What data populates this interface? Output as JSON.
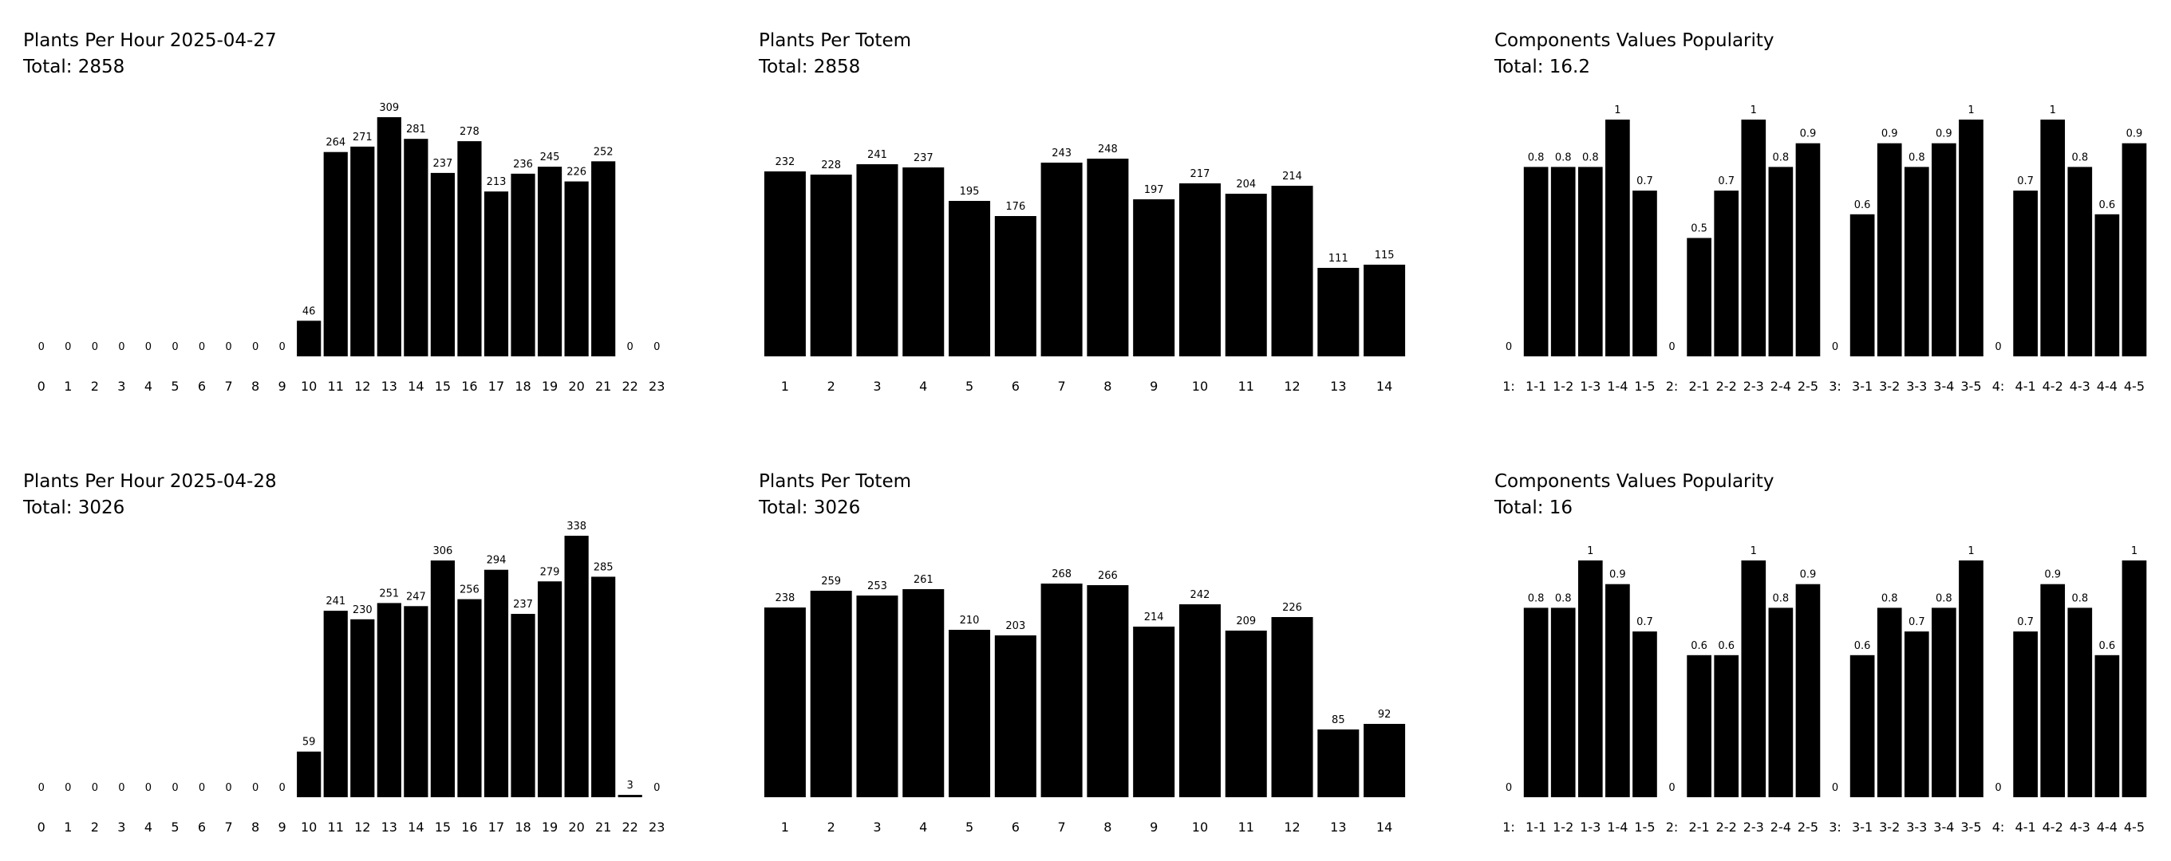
{
  "chart_data": [
    {
      "type": "bar",
      "title": "Plants Per Hour 2025-04-27",
      "total_label": "Total: 2858",
      "categories": [
        "0",
        "1",
        "2",
        "3",
        "4",
        "5",
        "6",
        "7",
        "8",
        "9",
        "10",
        "11",
        "12",
        "13",
        "14",
        "15",
        "16",
        "17",
        "18",
        "19",
        "20",
        "21",
        "22",
        "23"
      ],
      "values": [
        0,
        0,
        0,
        0,
        0,
        0,
        0,
        0,
        0,
        0,
        46,
        264,
        271,
        309,
        281,
        237,
        278,
        213,
        236,
        245,
        226,
        252,
        0,
        0
      ],
      "value_labels": [
        "0",
        "0",
        "0",
        "0",
        "0",
        "0",
        "0",
        "0",
        "0",
        "0",
        "46",
        "264",
        "271",
        "309",
        "281",
        "237",
        "278",
        "213",
        "236",
        "245",
        "226",
        "252",
        "0",
        "0"
      ],
      "ylim": [
        0,
        309
      ],
      "color": "#000000"
    },
    {
      "type": "bar",
      "title": "Plants Per Totem",
      "total_label": "Total: 2858",
      "categories": [
        "1",
        "2",
        "3",
        "4",
        "5",
        "6",
        "7",
        "8",
        "9",
        "10",
        "11",
        "12",
        "13",
        "14"
      ],
      "values": [
        232,
        228,
        241,
        237,
        195,
        176,
        243,
        248,
        197,
        217,
        204,
        214,
        111,
        115
      ],
      "value_labels": [
        "232",
        "228",
        "241",
        "237",
        "195",
        "176",
        "243",
        "248",
        "197",
        "217",
        "204",
        "214",
        "111",
        "115"
      ],
      "ylim": [
        0,
        300
      ],
      "color": "#000000"
    },
    {
      "type": "bar",
      "title": "Components Values Popularity",
      "total_label": "Total: 16.2",
      "groups": [
        {
          "label": "1:",
          "categories": [
            "1-1",
            "1-2",
            "1-3",
            "1-4",
            "1-5"
          ],
          "values": [
            0.8,
            0.8,
            0.8,
            1,
            0.7
          ],
          "value_labels": [
            "0.8",
            "0.8",
            "0.8",
            "1",
            "0.7"
          ]
        },
        {
          "label": "2:",
          "categories": [
            "2-1",
            "2-2",
            "2-3",
            "2-4",
            "2-5"
          ],
          "values": [
            0.5,
            0.7,
            1,
            0.8,
            0.9
          ],
          "value_labels": [
            "0.5",
            "0.7",
            "1",
            "0.8",
            "0.9"
          ]
        },
        {
          "label": "3:",
          "categories": [
            "3-1",
            "3-2",
            "3-3",
            "3-4",
            "3-5"
          ],
          "values": [
            0.6,
            0.9,
            0.8,
            0.9,
            1
          ],
          "value_labels": [
            "0.6",
            "0.9",
            "0.8",
            "0.9",
            "1"
          ]
        },
        {
          "label": "4:",
          "categories": [
            "4-1",
            "4-2",
            "4-3",
            "4-4",
            "4-5"
          ],
          "values": [
            0.7,
            1,
            0.8,
            0.6,
            0.9
          ],
          "value_labels": [
            "0.7",
            "1",
            "0.8",
            "0.6",
            "0.9"
          ]
        }
      ],
      "group_value_label": "0",
      "ylim": [
        0,
        1
      ],
      "color": "#000000"
    },
    {
      "type": "bar",
      "title": "Plants Per Hour 2025-04-28",
      "total_label": "Total: 3026",
      "categories": [
        "0",
        "1",
        "2",
        "3",
        "4",
        "5",
        "6",
        "7",
        "8",
        "9",
        "10",
        "11",
        "12",
        "13",
        "14",
        "15",
        "16",
        "17",
        "18",
        "19",
        "20",
        "21",
        "22",
        "23"
      ],
      "values": [
        0,
        0,
        0,
        0,
        0,
        0,
        0,
        0,
        0,
        0,
        59,
        241,
        230,
        251,
        247,
        306,
        256,
        294,
        237,
        279,
        338,
        285,
        3,
        0
      ],
      "value_labels": [
        "0",
        "0",
        "0",
        "0",
        "0",
        "0",
        "0",
        "0",
        "0",
        "0",
        "59",
        "241",
        "230",
        "251",
        "247",
        "306",
        "256",
        "294",
        "237",
        "279",
        "338",
        "285",
        "3",
        "0"
      ],
      "ylim": [
        0,
        338
      ],
      "color": "#000000"
    },
    {
      "type": "bar",
      "title": "Plants Per Totem",
      "total_label": "Total: 3026",
      "categories": [
        "1",
        "2",
        "3",
        "4",
        "5",
        "6",
        "7",
        "8",
        "9",
        "10",
        "11",
        "12",
        "13",
        "14"
      ],
      "values": [
        238,
        259,
        253,
        261,
        210,
        203,
        268,
        266,
        214,
        242,
        209,
        226,
        85,
        92
      ],
      "value_labels": [
        "238",
        "259",
        "253",
        "261",
        "210",
        "203",
        "268",
        "266",
        "214",
        "242",
        "209",
        "226",
        "85",
        "92"
      ],
      "ylim": [
        0,
        300
      ],
      "color": "#000000"
    },
    {
      "type": "bar",
      "title": "Components Values Popularity",
      "total_label": "Total: 16",
      "groups": [
        {
          "label": "1:",
          "categories": [
            "1-1",
            "1-2",
            "1-3",
            "1-4",
            "1-5"
          ],
          "values": [
            0.8,
            0.8,
            1,
            0.9,
            0.7
          ],
          "value_labels": [
            "0.8",
            "0.8",
            "1",
            "0.9",
            "0.7"
          ]
        },
        {
          "label": "2:",
          "categories": [
            "2-1",
            "2-2",
            "2-3",
            "2-4",
            "2-5"
          ],
          "values": [
            0.6,
            0.6,
            1,
            0.8,
            0.9
          ],
          "value_labels": [
            "0.6",
            "0.6",
            "1",
            "0.8",
            "0.9"
          ]
        },
        {
          "label": "3:",
          "categories": [
            "3-1",
            "3-2",
            "3-3",
            "3-4",
            "3-5"
          ],
          "values": [
            0.6,
            0.8,
            0.7,
            0.8,
            1
          ],
          "value_labels": [
            "0.6",
            "0.8",
            "0.7",
            "0.8",
            "1"
          ]
        },
        {
          "label": "4:",
          "categories": [
            "4-1",
            "4-2",
            "4-3",
            "4-4",
            "4-5"
          ],
          "values": [
            0.7,
            0.9,
            0.8,
            0.6,
            1
          ],
          "value_labels": [
            "0.7",
            "0.9",
            "0.8",
            "0.6",
            "1"
          ]
        }
      ],
      "group_value_label": "0",
      "ylim": [
        0,
        1
      ],
      "color": "#000000"
    }
  ]
}
